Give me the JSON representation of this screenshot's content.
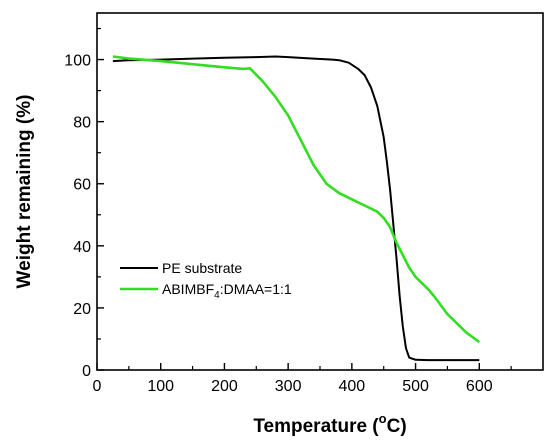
{
  "chart_data": {
    "type": "line",
    "title": "",
    "xlabel": "Temperature (°C)",
    "xlabel_parts": {
      "main": "Temperature (",
      "degree": "o",
      "unit": "C)"
    },
    "ylabel": "Weight remaining (%)",
    "xlim": [
      0,
      700
    ],
    "ylim": [
      0,
      115
    ],
    "xticks": [
      0,
      100,
      200,
      300,
      400,
      500,
      600
    ],
    "yticks": [
      0,
      20,
      40,
      60,
      80,
      100
    ],
    "grid": false,
    "legend_position": "lower-left",
    "series": [
      {
        "name": "PE substrate",
        "name_parts": {
          "main": "PE substrate"
        },
        "color": "#000000",
        "x": [
          25,
          50,
          100,
          150,
          200,
          250,
          280,
          300,
          340,
          370,
          380,
          395,
          410,
          420,
          430,
          440,
          450,
          455,
          460,
          465,
          470,
          475,
          480,
          485,
          490,
          500,
          520,
          560,
          600
        ],
        "y": [
          99.5,
          99.8,
          100,
          100.3,
          100.6,
          100.8,
          101,
          100.8,
          100.3,
          100,
          99.8,
          99,
          97,
          95,
          91,
          85,
          75,
          67,
          58,
          47,
          36,
          24,
          14,
          7,
          4,
          3.3,
          3.2,
          3.2,
          3.2
        ]
      },
      {
        "name": "ABIMBF4:DMAA=1:1",
        "name_parts": {
          "main": "ABIMBF",
          "sub": "4",
          "rest": ":DMAA=1:1"
        },
        "color": "#33dd22",
        "x": [
          25,
          50,
          100,
          150,
          200,
          230,
          240,
          260,
          280,
          300,
          320,
          340,
          360,
          380,
          400,
          420,
          440,
          450,
          460,
          470,
          480,
          490,
          500,
          520,
          530,
          550,
          580,
          600
        ],
        "y": [
          101,
          100.3,
          99.5,
          98.5,
          97.5,
          97,
          97.2,
          93,
          88,
          82,
          74,
          66,
          60,
          57,
          55,
          53,
          51,
          49,
          46,
          41,
          37,
          33,
          30,
          26,
          23.5,
          18,
          12,
          9
        ]
      }
    ]
  }
}
